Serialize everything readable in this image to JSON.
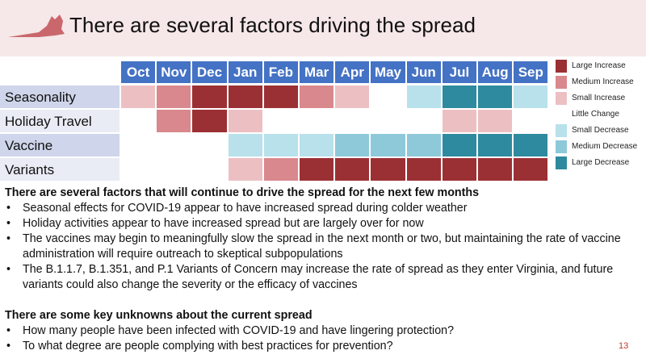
{
  "header": {
    "title": "There are several factors driving the spread"
  },
  "table": {
    "columns": [
      "Oct",
      "Nov",
      "Dec",
      "Jan",
      "Feb",
      "Mar",
      "Apr",
      "May",
      "Jun",
      "Jul",
      "Aug",
      "Sep"
    ],
    "rows": [
      {
        "label": "Seasonality",
        "levels": [
          "Small Increase",
          "Medium Increase",
          "Large Increase",
          "Large Increase",
          "Large Increase",
          "Medium Increase",
          "Small Increase",
          "Little Change",
          "Small Decrease",
          "Large Decrease",
          "Large Decrease",
          "Small Decrease"
        ]
      },
      {
        "label": "Holiday Travel",
        "levels": [
          null,
          "Medium Increase",
          "Large Increase",
          "Small Increase",
          null,
          null,
          null,
          null,
          null,
          "Small Increase",
          "Small Increase",
          null
        ]
      },
      {
        "label": "Vaccine",
        "levels": [
          null,
          null,
          null,
          "Small Decrease",
          "Small Decrease",
          "Small Decrease",
          "Medium Decrease",
          "Medium Decrease",
          "Medium Decrease",
          "Large Decrease",
          "Large Decrease",
          "Large Decrease"
        ]
      },
      {
        "label": "Variants",
        "levels": [
          null,
          null,
          null,
          "Small Increase",
          "Medium Increase",
          "Large Increase",
          "Large Increase",
          "Large Increase",
          "Large Increase",
          "Large Increase",
          "Large Increase",
          "Large Increase"
        ]
      }
    ]
  },
  "legend": [
    {
      "label": "Large Increase",
      "color": "#9b3034"
    },
    {
      "label": "Medium Increase",
      "color": "#d9888d"
    },
    {
      "label": "Small Increase",
      "color": "#ecc0c3"
    },
    {
      "label": "Little Change",
      "color": "#ffffff"
    },
    {
      "label": "Small Decrease",
      "color": "#b8e1eb"
    },
    {
      "label": "Medium Decrease",
      "color": "#8dc9d9"
    },
    {
      "label": "Large Decrease",
      "color": "#2e8a9e"
    }
  ],
  "sections": [
    {
      "heading": "There are several factors that will continue to drive the spread for the next few months",
      "bullets": [
        "Seasonal effects for COVID-19 appear to have increased spread during colder weather",
        "Holiday activities appear to have increased spread but are largely over for now",
        "The vaccines may begin to meaningfully slow the spread in the next month or two, but maintaining the rate of vaccine administration will require outreach to skeptical subpopulations",
        "The B.1.1.7, B.1.351, and P.1 Variants of Concern may increase the rate of spread as they enter Virginia, and future variants could also change the severity or the efficacy of vaccines"
      ]
    },
    {
      "heading": "There are some key unknowns about the current spread",
      "bullets": [
        "How many people have been infected with COVID-19 and have lingering protection?",
        "To what degree are people complying with best practices for prevention?"
      ]
    }
  ],
  "page_number": "13"
}
